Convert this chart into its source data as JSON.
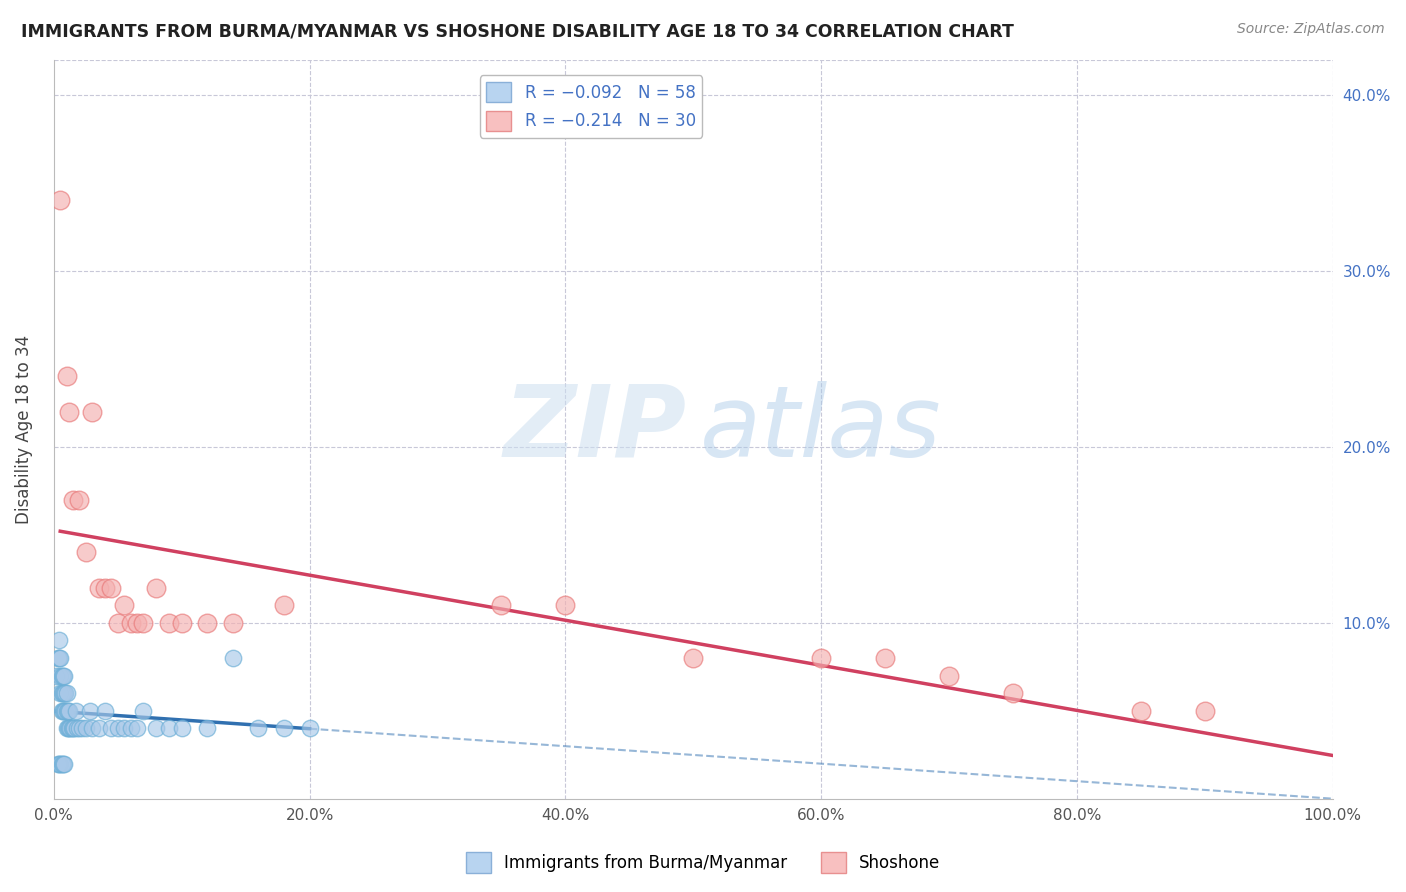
{
  "title": "IMMIGRANTS FROM BURMA/MYANMAR VS SHOSHONE DISABILITY AGE 18 TO 34 CORRELATION CHART",
  "source": "Source: ZipAtlas.com",
  "ylabel": "Disability Age 18 to 34",
  "xlim": [
    0.0,
    1.0
  ],
  "ylim": [
    0.0,
    0.42
  ],
  "xticks": [
    0.0,
    0.2,
    0.4,
    0.6,
    0.8,
    1.0
  ],
  "xticklabels": [
    "0.0%",
    "20.0%",
    "40.0%",
    "60.0%",
    "80.0%",
    "100.0%"
  ],
  "yticks": [
    0.0,
    0.1,
    0.2,
    0.3,
    0.4
  ],
  "yticklabels_left": [
    "",
    "",
    "",
    "",
    ""
  ],
  "yticklabels_right": [
    "",
    "10.0%",
    "20.0%",
    "30.0%",
    "40.0%"
  ],
  "blue_color": "#a8c8e8",
  "blue_edge_color": "#6aaed6",
  "pink_color": "#f4b0b0",
  "pink_edge_color": "#e87878",
  "blue_line_color": "#3070b0",
  "pink_line_color": "#d04060",
  "watermark_zip": "ZIP",
  "watermark_atlas": "atlas",
  "grid_color": "#c8c8d8",
  "tick_color": "#4472c4",
  "blue_points": [
    [
      0.002,
      0.07
    ],
    [
      0.003,
      0.08
    ],
    [
      0.004,
      0.08
    ],
    [
      0.004,
      0.09
    ],
    [
      0.005,
      0.06
    ],
    [
      0.005,
      0.07
    ],
    [
      0.005,
      0.08
    ],
    [
      0.006,
      0.05
    ],
    [
      0.006,
      0.06
    ],
    [
      0.006,
      0.07
    ],
    [
      0.007,
      0.05
    ],
    [
      0.007,
      0.06
    ],
    [
      0.007,
      0.07
    ],
    [
      0.008,
      0.05
    ],
    [
      0.008,
      0.06
    ],
    [
      0.008,
      0.07
    ],
    [
      0.009,
      0.05
    ],
    [
      0.009,
      0.06
    ],
    [
      0.01,
      0.04
    ],
    [
      0.01,
      0.05
    ],
    [
      0.01,
      0.06
    ],
    [
      0.011,
      0.04
    ],
    [
      0.011,
      0.05
    ],
    [
      0.012,
      0.04
    ],
    [
      0.012,
      0.05
    ],
    [
      0.013,
      0.04
    ],
    [
      0.014,
      0.04
    ],
    [
      0.015,
      0.04
    ],
    [
      0.016,
      0.04
    ],
    [
      0.017,
      0.05
    ],
    [
      0.018,
      0.04
    ],
    [
      0.02,
      0.04
    ],
    [
      0.022,
      0.04
    ],
    [
      0.025,
      0.04
    ],
    [
      0.028,
      0.05
    ],
    [
      0.03,
      0.04
    ],
    [
      0.035,
      0.04
    ],
    [
      0.04,
      0.05
    ],
    [
      0.045,
      0.04
    ],
    [
      0.05,
      0.04
    ],
    [
      0.055,
      0.04
    ],
    [
      0.06,
      0.04
    ],
    [
      0.065,
      0.04
    ],
    [
      0.07,
      0.05
    ],
    [
      0.08,
      0.04
    ],
    [
      0.09,
      0.04
    ],
    [
      0.1,
      0.04
    ],
    [
      0.12,
      0.04
    ],
    [
      0.14,
      0.08
    ],
    [
      0.16,
      0.04
    ],
    [
      0.18,
      0.04
    ],
    [
      0.2,
      0.04
    ],
    [
      0.003,
      0.02
    ],
    [
      0.004,
      0.02
    ],
    [
      0.005,
      0.02
    ],
    [
      0.006,
      0.02
    ],
    [
      0.007,
      0.02
    ],
    [
      0.008,
      0.02
    ]
  ],
  "pink_points": [
    [
      0.005,
      0.34
    ],
    [
      0.01,
      0.24
    ],
    [
      0.012,
      0.22
    ],
    [
      0.015,
      0.17
    ],
    [
      0.02,
      0.17
    ],
    [
      0.025,
      0.14
    ],
    [
      0.03,
      0.22
    ],
    [
      0.035,
      0.12
    ],
    [
      0.04,
      0.12
    ],
    [
      0.045,
      0.12
    ],
    [
      0.05,
      0.1
    ],
    [
      0.055,
      0.11
    ],
    [
      0.06,
      0.1
    ],
    [
      0.065,
      0.1
    ],
    [
      0.07,
      0.1
    ],
    [
      0.08,
      0.12
    ],
    [
      0.09,
      0.1
    ],
    [
      0.1,
      0.1
    ],
    [
      0.12,
      0.1
    ],
    [
      0.14,
      0.1
    ],
    [
      0.18,
      0.11
    ],
    [
      0.35,
      0.11
    ],
    [
      0.4,
      0.11
    ],
    [
      0.5,
      0.08
    ],
    [
      0.6,
      0.08
    ],
    [
      0.65,
      0.08
    ],
    [
      0.7,
      0.07
    ],
    [
      0.75,
      0.06
    ],
    [
      0.85,
      0.05
    ],
    [
      0.9,
      0.05
    ]
  ],
  "blue_line_xrange": [
    0.002,
    0.2
  ],
  "pink_line_xrange": [
    0.005,
    1.0
  ]
}
